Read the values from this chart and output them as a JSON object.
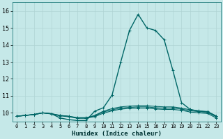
{
  "xlabel": "Humidex (Indice chaleur)",
  "background_color": "#c5e8e8",
  "grid_color": "#b0d4d4",
  "line_color": "#006666",
  "xlim": [
    -0.5,
    23.5
  ],
  "ylim": [
    9.5,
    16.5
  ],
  "yticks": [
    10,
    11,
    12,
    13,
    14,
    15,
    16
  ],
  "xticks": [
    0,
    1,
    2,
    3,
    4,
    5,
    6,
    7,
    8,
    9,
    10,
    11,
    12,
    13,
    14,
    15,
    16,
    17,
    18,
    19,
    20,
    21,
    22,
    23
  ],
  "series": [
    [
      9.8,
      9.85,
      9.9,
      10.0,
      9.95,
      9.7,
      9.6,
      9.55,
      9.55,
      10.1,
      10.3,
      11.05,
      13.0,
      14.85,
      15.8,
      15.0,
      14.85,
      14.3,
      12.5,
      10.6,
      10.2,
      10.1,
      10.05,
      9.8
    ],
    [
      9.8,
      9.85,
      9.9,
      10.0,
      9.95,
      9.85,
      9.8,
      9.7,
      9.7,
      9.85,
      10.1,
      10.25,
      10.35,
      10.4,
      10.42,
      10.42,
      10.38,
      10.35,
      10.35,
      10.28,
      10.18,
      10.12,
      10.08,
      9.82
    ],
    [
      9.8,
      9.85,
      9.9,
      10.0,
      9.95,
      9.85,
      9.8,
      9.72,
      9.72,
      9.82,
      10.05,
      10.18,
      10.28,
      10.32,
      10.35,
      10.35,
      10.3,
      10.28,
      10.28,
      10.22,
      10.12,
      10.07,
      10.03,
      9.77
    ],
    [
      9.8,
      9.85,
      9.9,
      10.0,
      9.93,
      9.82,
      9.77,
      9.68,
      9.68,
      9.78,
      9.98,
      10.12,
      10.22,
      10.26,
      10.28,
      10.28,
      10.23,
      10.2,
      10.2,
      10.15,
      10.05,
      10.0,
      9.96,
      9.7
    ]
  ]
}
